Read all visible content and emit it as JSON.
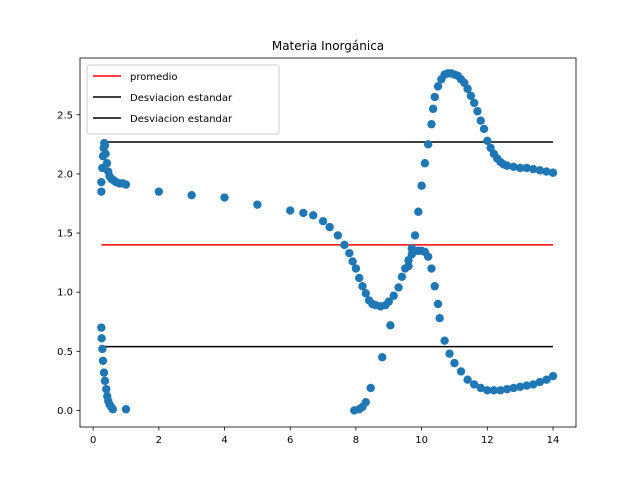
{
  "chart_data": {
    "type": "scatter",
    "title": "Materia Inorgánica",
    "xlabel": "",
    "ylabel": "",
    "xlim": [
      -0.4,
      14.7
    ],
    "ylim": [
      -0.14,
      2.98
    ],
    "xticks": [
      0,
      2,
      4,
      6,
      8,
      10,
      12,
      14
    ],
    "yticks": [
      0.0,
      0.5,
      1.0,
      1.5,
      2.0,
      2.5
    ],
    "grid": false,
    "legend_position": "top-left",
    "legend": [
      {
        "label": "promedio",
        "color": "#ff0000"
      },
      {
        "label": "Desviacion estandar",
        "color": "#000000"
      },
      {
        "label": "Desviacion estandar",
        "color": "#000000"
      }
    ],
    "lines": [
      {
        "name": "promedio",
        "color": "#ff0000",
        "x": [
          0.25,
          14.0
        ],
        "y": [
          1.4,
          1.4
        ]
      },
      {
        "name": "Desviacion estandar",
        "color": "#000000",
        "x": [
          0.25,
          14.0
        ],
        "y": [
          2.27,
          2.27
        ]
      },
      {
        "name": "Desviacion estandar",
        "color": "#000000",
        "x": [
          0.25,
          14.0
        ],
        "y": [
          0.54,
          0.54
        ]
      }
    ],
    "point_color": "#1f77b4",
    "points": [
      [
        0.25,
        1.85
      ],
      [
        0.25,
        1.93
      ],
      [
        0.28,
        2.05
      ],
      [
        0.3,
        2.15
      ],
      [
        0.32,
        2.22
      ],
      [
        0.34,
        2.26
      ],
      [
        0.36,
        2.24
      ],
      [
        0.38,
        2.17
      ],
      [
        0.42,
        2.09
      ],
      [
        0.46,
        2.02
      ],
      [
        0.5,
        1.98
      ],
      [
        0.55,
        1.96
      ],
      [
        0.6,
        1.95
      ],
      [
        0.65,
        1.94
      ],
      [
        0.7,
        1.93
      ],
      [
        0.8,
        1.92
      ],
      [
        0.9,
        1.92
      ],
      [
        1.0,
        1.91
      ],
      [
        0.25,
        0.7
      ],
      [
        0.26,
        0.61
      ],
      [
        0.28,
        0.52
      ],
      [
        0.3,
        0.42
      ],
      [
        0.33,
        0.32
      ],
      [
        0.36,
        0.25
      ],
      [
        0.4,
        0.18
      ],
      [
        0.43,
        0.12
      ],
      [
        0.46,
        0.08
      ],
      [
        0.5,
        0.05
      ],
      [
        0.55,
        0.03
      ],
      [
        0.6,
        0.01
      ],
      [
        1.0,
        0.01
      ],
      [
        2.0,
        1.85
      ],
      [
        3.0,
        1.82
      ],
      [
        4.0,
        1.8
      ],
      [
        5.0,
        1.74
      ],
      [
        6.0,
        1.69
      ],
      [
        6.4,
        1.67
      ],
      [
        6.7,
        1.65
      ],
      [
        7.0,
        1.6
      ],
      [
        7.2,
        1.55
      ],
      [
        7.45,
        1.48
      ],
      [
        7.65,
        1.4
      ],
      [
        7.8,
        1.33
      ],
      [
        7.9,
        1.26
      ],
      [
        8.0,
        1.2
      ],
      [
        8.1,
        1.12
      ],
      [
        8.2,
        1.05
      ],
      [
        8.3,
        0.99
      ],
      [
        8.4,
        0.93
      ],
      [
        8.5,
        0.9
      ],
      [
        8.6,
        0.89
      ],
      [
        8.75,
        0.88
      ],
      [
        8.9,
        0.89
      ],
      [
        9.0,
        0.92
      ],
      [
        9.15,
        0.97
      ],
      [
        9.3,
        1.04
      ],
      [
        9.4,
        1.13
      ],
      [
        9.5,
        1.2
      ],
      [
        9.6,
        1.27
      ],
      [
        9.7,
        1.32
      ],
      [
        9.8,
        1.35
      ],
      [
        9.9,
        1.35
      ],
      [
        10.0,
        1.35
      ],
      [
        10.1,
        1.34
      ],
      [
        10.2,
        1.3
      ],
      [
        10.3,
        1.2
      ],
      [
        10.4,
        1.05
      ],
      [
        10.5,
        0.9
      ],
      [
        10.55,
        0.78
      ],
      [
        10.7,
        0.59
      ],
      [
        10.85,
        0.48
      ],
      [
        11.0,
        0.4
      ],
      [
        11.2,
        0.33
      ],
      [
        11.4,
        0.26
      ],
      [
        11.6,
        0.22
      ],
      [
        11.8,
        0.19
      ],
      [
        12.0,
        0.17
      ],
      [
        12.2,
        0.17
      ],
      [
        12.4,
        0.17
      ],
      [
        12.6,
        0.18
      ],
      [
        12.8,
        0.19
      ],
      [
        13.0,
        0.2
      ],
      [
        13.2,
        0.21
      ],
      [
        13.4,
        0.22
      ],
      [
        13.6,
        0.24
      ],
      [
        13.8,
        0.26
      ],
      [
        14.0,
        0.29
      ],
      [
        7.95,
        0.0
      ],
      [
        8.1,
        0.01
      ],
      [
        8.2,
        0.03
      ],
      [
        8.3,
        0.07
      ],
      [
        8.45,
        0.19
      ],
      [
        8.8,
        0.45
      ],
      [
        9.05,
        0.72
      ],
      [
        9.6,
        1.22
      ],
      [
        9.7,
        1.37
      ],
      [
        9.8,
        1.48
      ],
      [
        9.9,
        1.68
      ],
      [
        10.0,
        1.9
      ],
      [
        10.1,
        2.09
      ],
      [
        10.2,
        2.25
      ],
      [
        10.3,
        2.42
      ],
      [
        10.35,
        2.55
      ],
      [
        10.4,
        2.65
      ],
      [
        10.5,
        2.74
      ],
      [
        10.6,
        2.8
      ],
      [
        10.7,
        2.84
      ],
      [
        10.8,
        2.85
      ],
      [
        10.9,
        2.85
      ],
      [
        11.0,
        2.84
      ],
      [
        11.1,
        2.83
      ],
      [
        11.2,
        2.8
      ],
      [
        11.3,
        2.77
      ],
      [
        11.4,
        2.72
      ],
      [
        11.5,
        2.66
      ],
      [
        11.6,
        2.6
      ],
      [
        11.7,
        2.53
      ],
      [
        11.8,
        2.45
      ],
      [
        11.9,
        2.38
      ],
      [
        12.0,
        2.28
      ],
      [
        12.1,
        2.22
      ],
      [
        12.2,
        2.17
      ],
      [
        12.3,
        2.13
      ],
      [
        12.4,
        2.1
      ],
      [
        12.5,
        2.08
      ],
      [
        12.6,
        2.07
      ],
      [
        12.8,
        2.06
      ],
      [
        13.0,
        2.05
      ],
      [
        13.2,
        2.05
      ],
      [
        13.4,
        2.04
      ],
      [
        13.6,
        2.03
      ],
      [
        13.8,
        2.02
      ],
      [
        14.0,
        2.01
      ]
    ]
  }
}
